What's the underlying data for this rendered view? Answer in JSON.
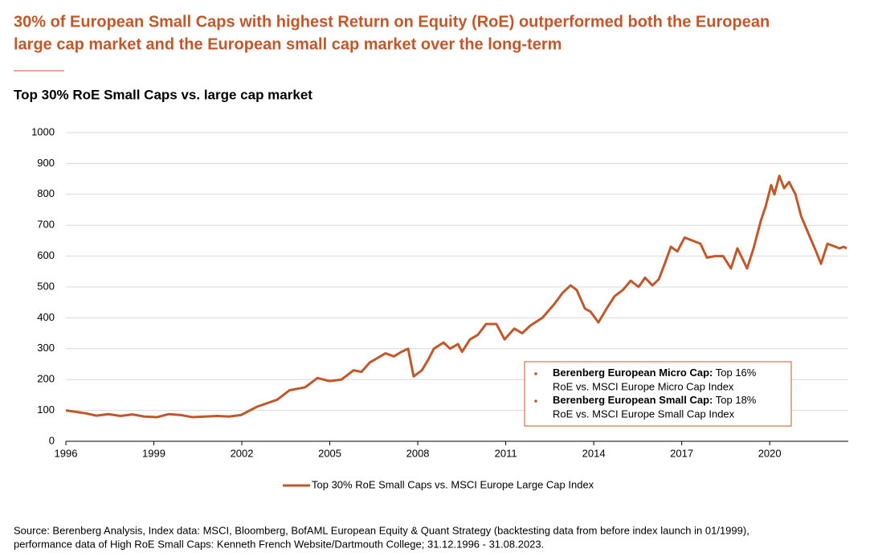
{
  "header": {
    "title_lines": [
      "30% of European Small Caps with highest Return on Equity (RoE) outperformed both the European",
      "large cap market and the European small cap market over the long-term"
    ]
  },
  "chart_data": {
    "type": "line",
    "title": "Top 30% RoE Small Caps vs. large cap market",
    "x": [
      1996.0,
      1996.36,
      1996.71,
      1997.04,
      1997.45,
      1997.86,
      1998.27,
      1998.68,
      1999.1,
      1999.51,
      1999.92,
      2000.33,
      2000.74,
      2001.15,
      2001.56,
      2001.97,
      2002.52,
      2003.21,
      2003.62,
      2004.16,
      2004.58,
      2004.99,
      2005.4,
      2005.81,
      2006.08,
      2006.36,
      2006.63,
      2006.9,
      2007.18,
      2007.45,
      2007.67,
      2007.86,
      2008.14,
      2008.36,
      2008.55,
      2008.88,
      2009.1,
      2009.37,
      2009.51,
      2009.78,
      2010.05,
      2010.33,
      2010.68,
      2010.96,
      2011.29,
      2011.56,
      2011.84,
      2012.25,
      2012.66,
      2012.93,
      2013.21,
      2013.42,
      2013.7,
      2013.89,
      2014.16,
      2014.44,
      2014.71,
      2014.99,
      2015.26,
      2015.53,
      2015.75,
      2016.0,
      2016.22,
      2016.44,
      2016.63,
      2016.85,
      2017.1,
      2017.37,
      2017.64,
      2017.86,
      2018.14,
      2018.41,
      2018.68,
      2018.9,
      2019.23,
      2019.45,
      2019.7,
      2019.86,
      2020.05,
      2020.16,
      2020.33,
      2020.49,
      2020.66,
      2020.88,
      2021.07,
      2021.29,
      2021.56,
      2021.75,
      2021.97,
      2022.25,
      2022.38,
      2022.52,
      2022.63
    ],
    "series": [
      {
        "name": "Top 30% RoE Small Caps vs. MSCI Europe Large Cap Index",
        "color": "#c0582b",
        "values": [
          100,
          95,
          90,
          83,
          88,
          82,
          87,
          80,
          78,
          88,
          85,
          78,
          80,
          82,
          80,
          85,
          112,
          135,
          165,
          175,
          205,
          195,
          200,
          230,
          225,
          255,
          270,
          285,
          275,
          290,
          300,
          210,
          230,
          265,
          300,
          320,
          300,
          315,
          290,
          330,
          345,
          380,
          380,
          330,
          365,
          350,
          375,
          400,
          445,
          480,
          505,
          490,
          430,
          420,
          385,
          430,
          470,
          490,
          520,
          500,
          530,
          505,
          525,
          580,
          630,
          615,
          660,
          650,
          640,
          595,
          600,
          600,
          560,
          625,
          560,
          625,
          715,
          760,
          830,
          800,
          860,
          820,
          840,
          800,
          730,
          680,
          620,
          575,
          640,
          630,
          625,
          630,
          625
        ]
      }
    ],
    "xlim": [
      1996,
      2022.68
    ],
    "xticks": [
      1996,
      1999,
      2002,
      2005,
      2008,
      2011,
      2014,
      2017,
      2020
    ],
    "ylim": [
      0,
      1000
    ],
    "yticks": [
      0,
      100,
      200,
      300,
      400,
      500,
      600,
      700,
      800,
      900,
      1000
    ],
    "grid": true,
    "annotations": [
      {
        "bold": "Berenberg European Micro Cap:",
        "text": " Top 16%",
        "line2": "RoE vs. MSCI Europe Micro Cap Index"
      },
      {
        "bold": "Berenberg European Small Cap:",
        "text": " Top 18%",
        "line2": "RoE vs. MSCI Europe Small Cap Index"
      }
    ]
  },
  "footer": {
    "source_lines": [
      "Source: Berenberg Analysis, Index data: MSCI, Bloomberg, BofAML European Equity & Quant Strategy (backtesting data from before index launch in 01/1999),",
      "performance data of High RoE Small Caps: Kenneth French Website/Dartmouth College; 31.12.1996 - 31.08.2023."
    ]
  }
}
